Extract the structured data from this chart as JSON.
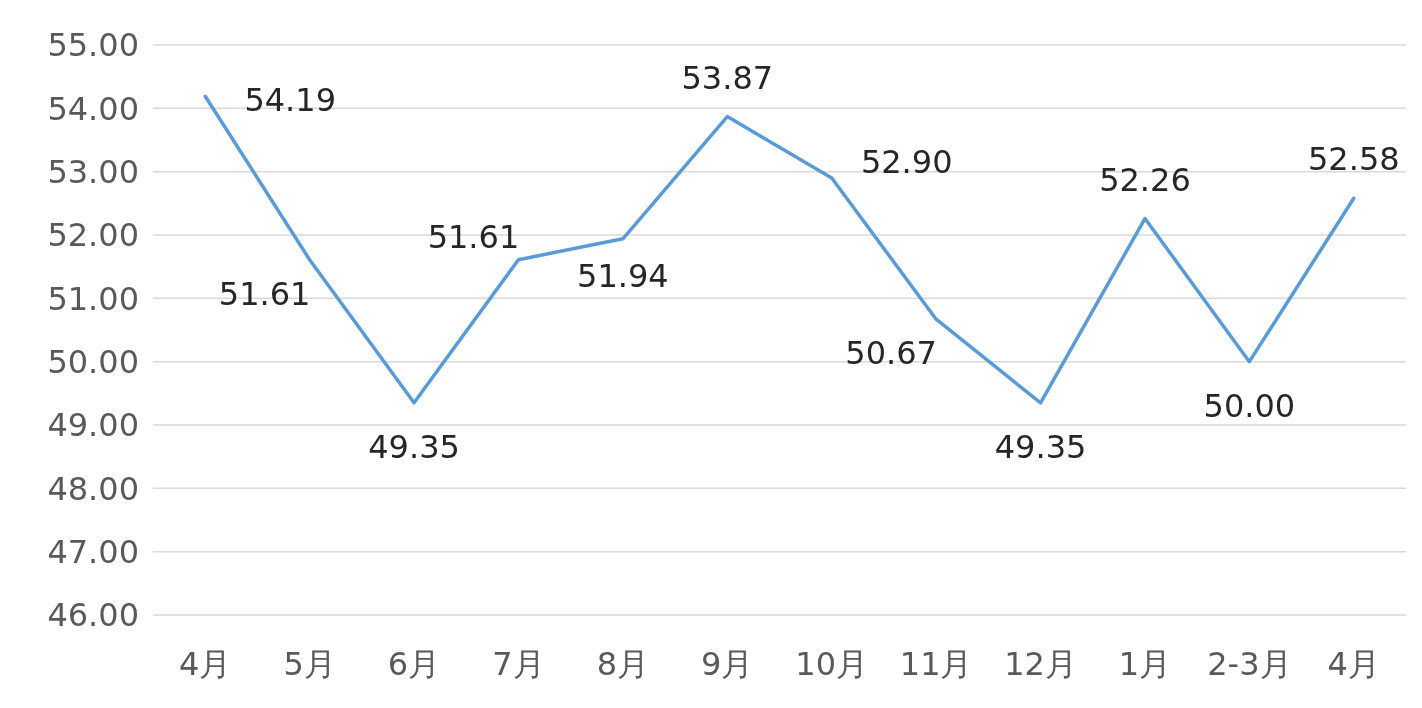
{
  "chart_data": {
    "type": "line",
    "categories": [
      "4月",
      "5月",
      "6月",
      "7月",
      "8月",
      "9月",
      "10月",
      "11月",
      "12月",
      "1月",
      "2-3月",
      "4月"
    ],
    "series": [
      {
        "color": "#5b9bd5",
        "values": [
          54.19,
          51.61,
          49.35,
          51.61,
          51.94,
          53.87,
          52.9,
          50.67,
          49.35,
          52.26,
          50.0,
          52.58
        ],
        "value_labels": [
          "54.19",
          "51.61",
          "49.35",
          "51.61",
          "51.94",
          "53.87",
          "52.90",
          "50.67",
          "49.35",
          "52.26",
          "50.00",
          "52.58"
        ]
      }
    ],
    "ylim": [
      46,
      55
    ],
    "yticks": [
      {
        "value": 46,
        "label": "46.00"
      },
      {
        "value": 47,
        "label": "47.00"
      },
      {
        "value": 48,
        "label": "48.00"
      },
      {
        "value": 49,
        "label": "49.00"
      },
      {
        "value": 50,
        "label": "50.00"
      },
      {
        "value": 51,
        "label": "51.00"
      },
      {
        "value": 52,
        "label": "52.00"
      },
      {
        "value": 53,
        "label": "53.00"
      },
      {
        "value": 54,
        "label": "54.00"
      },
      {
        "value": 55,
        "label": "55.00"
      }
    ],
    "grid": "y",
    "marker": "none",
    "line_style": "solid"
  }
}
